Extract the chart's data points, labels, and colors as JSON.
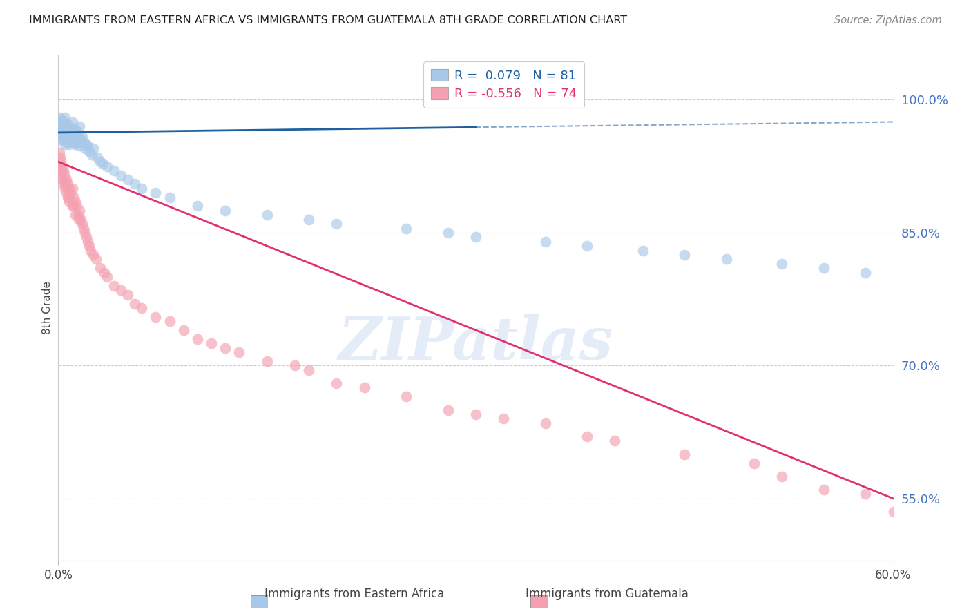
{
  "title": "IMMIGRANTS FROM EASTERN AFRICA VS IMMIGRANTS FROM GUATEMALA 8TH GRADE CORRELATION CHART",
  "source": "Source: ZipAtlas.com",
  "ylabel": "8th Grade",
  "yticks": [
    55.0,
    70.0,
    85.0,
    100.0
  ],
  "ytick_labels": [
    "55.0%",
    "70.0%",
    "85.0%",
    "100.0%"
  ],
  "xmin": 0.0,
  "xmax": 60.0,
  "ymin": 48.0,
  "ymax": 105.0,
  "blue_R": 0.079,
  "blue_N": 81,
  "pink_R": -0.556,
  "pink_N": 74,
  "legend_text_blue": "R =  0.079   N = 81",
  "legend_text_pink": "R = -0.556   N = 74",
  "blue_color": "#a8c8e8",
  "pink_color": "#f4a0b0",
  "blue_line_color": "#2060a0",
  "pink_line_color": "#e03070",
  "blue_scatter_x": [
    0.1,
    0.1,
    0.1,
    0.2,
    0.2,
    0.2,
    0.2,
    0.3,
    0.3,
    0.3,
    0.3,
    0.4,
    0.4,
    0.4,
    0.5,
    0.5,
    0.5,
    0.5,
    0.6,
    0.6,
    0.6,
    0.7,
    0.7,
    0.7,
    0.8,
    0.8,
    0.8,
    0.9,
    0.9,
    1.0,
    1.0,
    1.0,
    1.1,
    1.1,
    1.2,
    1.2,
    1.3,
    1.3,
    1.4,
    1.5,
    1.5,
    1.6,
    1.7,
    1.8,
    1.9,
    2.0,
    2.1,
    2.2,
    2.4,
    2.5,
    2.8,
    3.0,
    3.2,
    3.5,
    4.0,
    4.5,
    5.0,
    5.5,
    6.0,
    7.0,
    8.0,
    10.0,
    12.0,
    15.0,
    18.0,
    20.0,
    25.0,
    28.0,
    30.0,
    35.0,
    38.0,
    42.0,
    45.0,
    48.0,
    52.0,
    55.0,
    58.0,
    0.15,
    0.25,
    0.35,
    0.45
  ],
  "blue_scatter_y": [
    97.5,
    96.0,
    98.0,
    97.0,
    96.5,
    95.5,
    97.8,
    96.8,
    95.8,
    97.2,
    96.2,
    97.0,
    95.5,
    96.5,
    97.5,
    95.0,
    96.0,
    98.0,
    96.5,
    95.2,
    97.0,
    96.8,
    95.5,
    97.2,
    96.5,
    95.0,
    97.0,
    96.2,
    95.8,
    97.5,
    96.0,
    95.2,
    96.8,
    95.5,
    96.5,
    95.0,
    96.5,
    95.2,
    96.0,
    97.0,
    94.8,
    95.5,
    95.8,
    95.2,
    94.5,
    95.0,
    94.8,
    94.2,
    93.8,
    94.5,
    93.5,
    93.0,
    92.8,
    92.5,
    92.0,
    91.5,
    91.0,
    90.5,
    90.0,
    89.5,
    89.0,
    88.0,
    87.5,
    87.0,
    86.5,
    86.0,
    85.5,
    85.0,
    84.5,
    84.0,
    83.5,
    83.0,
    82.5,
    82.0,
    81.5,
    81.0,
    80.5,
    97.3,
    96.3,
    96.7,
    95.7
  ],
  "pink_scatter_x": [
    0.1,
    0.1,
    0.2,
    0.2,
    0.3,
    0.3,
    0.4,
    0.4,
    0.5,
    0.5,
    0.6,
    0.6,
    0.7,
    0.7,
    0.8,
    0.8,
    0.9,
    1.0,
    1.0,
    1.1,
    1.2,
    1.2,
    1.3,
    1.4,
    1.5,
    1.6,
    1.7,
    1.8,
    1.9,
    2.0,
    2.1,
    2.2,
    2.3,
    2.5,
    2.7,
    3.0,
    3.3,
    3.5,
    4.0,
    4.5,
    5.0,
    5.5,
    6.0,
    7.0,
    8.0,
    9.0,
    10.0,
    11.0,
    12.0,
    13.0,
    15.0,
    17.0,
    18.0,
    20.0,
    22.0,
    25.0,
    28.0,
    30.0,
    32.0,
    35.0,
    38.0,
    40.0,
    45.0,
    50.0,
    52.0,
    55.0,
    58.0,
    60.0,
    0.15,
    0.25,
    0.55,
    0.75,
    1.05,
    1.45
  ],
  "pink_scatter_y": [
    94.0,
    92.5,
    93.0,
    91.5,
    92.5,
    91.0,
    92.0,
    90.5,
    91.5,
    90.0,
    91.0,
    89.5,
    90.5,
    89.0,
    90.0,
    88.5,
    89.5,
    90.0,
    88.0,
    89.0,
    88.5,
    87.0,
    88.0,
    87.0,
    87.5,
    86.5,
    86.0,
    85.5,
    85.0,
    84.5,
    84.0,
    83.5,
    83.0,
    82.5,
    82.0,
    81.0,
    80.5,
    80.0,
    79.0,
    78.5,
    78.0,
    77.0,
    76.5,
    75.5,
    75.0,
    74.0,
    73.0,
    72.5,
    72.0,
    71.5,
    70.5,
    70.0,
    69.5,
    68.0,
    67.5,
    66.5,
    65.0,
    64.5,
    64.0,
    63.5,
    62.0,
    61.5,
    60.0,
    59.0,
    57.5,
    56.0,
    55.5,
    53.5,
    93.5,
    92.0,
    90.5,
    89.0,
    88.0,
    86.5
  ]
}
